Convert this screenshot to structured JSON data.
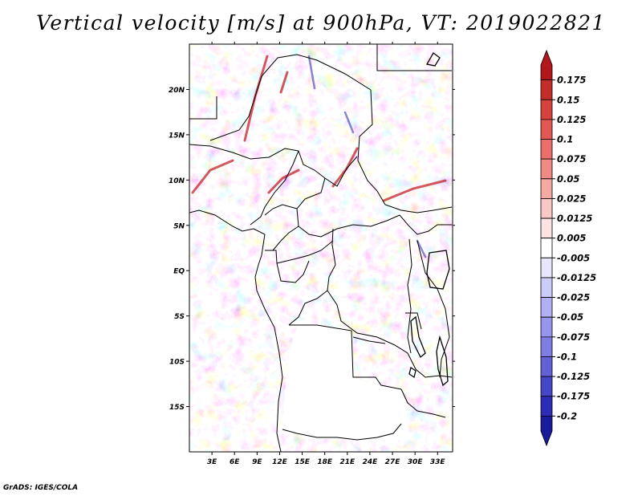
{
  "title": "Vertical velocity [m/s] at 900hPa, VT: 2019022821",
  "footer": "GrADS: IGES/COLA",
  "map": {
    "lon_range": [
      0,
      35
    ],
    "lat_range": [
      -20,
      25
    ],
    "lon_tick_labels": [
      "3E",
      "6E",
      "9E",
      "12E",
      "15E",
      "18E",
      "21E",
      "24E",
      "27E",
      "30E",
      "33E"
    ],
    "lat_tick_labels": [
      "20N",
      "15N",
      "10N",
      "5N",
      "EQ",
      "5S",
      "10S",
      "15S"
    ]
  },
  "colorbar": {
    "labels": [
      "0.175",
      "0.15",
      "0.125",
      "0.1",
      "0.075",
      "0.05",
      "0.025",
      "0.0125",
      "0.005",
      "-0.005",
      "-0.0125",
      "-0.025",
      "-0.05",
      "-0.075",
      "-0.1",
      "-0.125",
      "-0.175",
      "-0.2"
    ],
    "colors": [
      "#b2181b",
      "#c52d2b",
      "#d6433e",
      "#e25752",
      "#ea6e69",
      "#f08a84",
      "#f5a9a3",
      "#f9c9c5",
      "#fce4e2",
      "#ffffff",
      "#e6e6fc",
      "#ccccfa",
      "#b0b0f4",
      "#9696ec",
      "#7d7de2",
      "#6262d6",
      "#4646c8",
      "#2c2cb6",
      "#1a1a9c"
    ]
  }
}
